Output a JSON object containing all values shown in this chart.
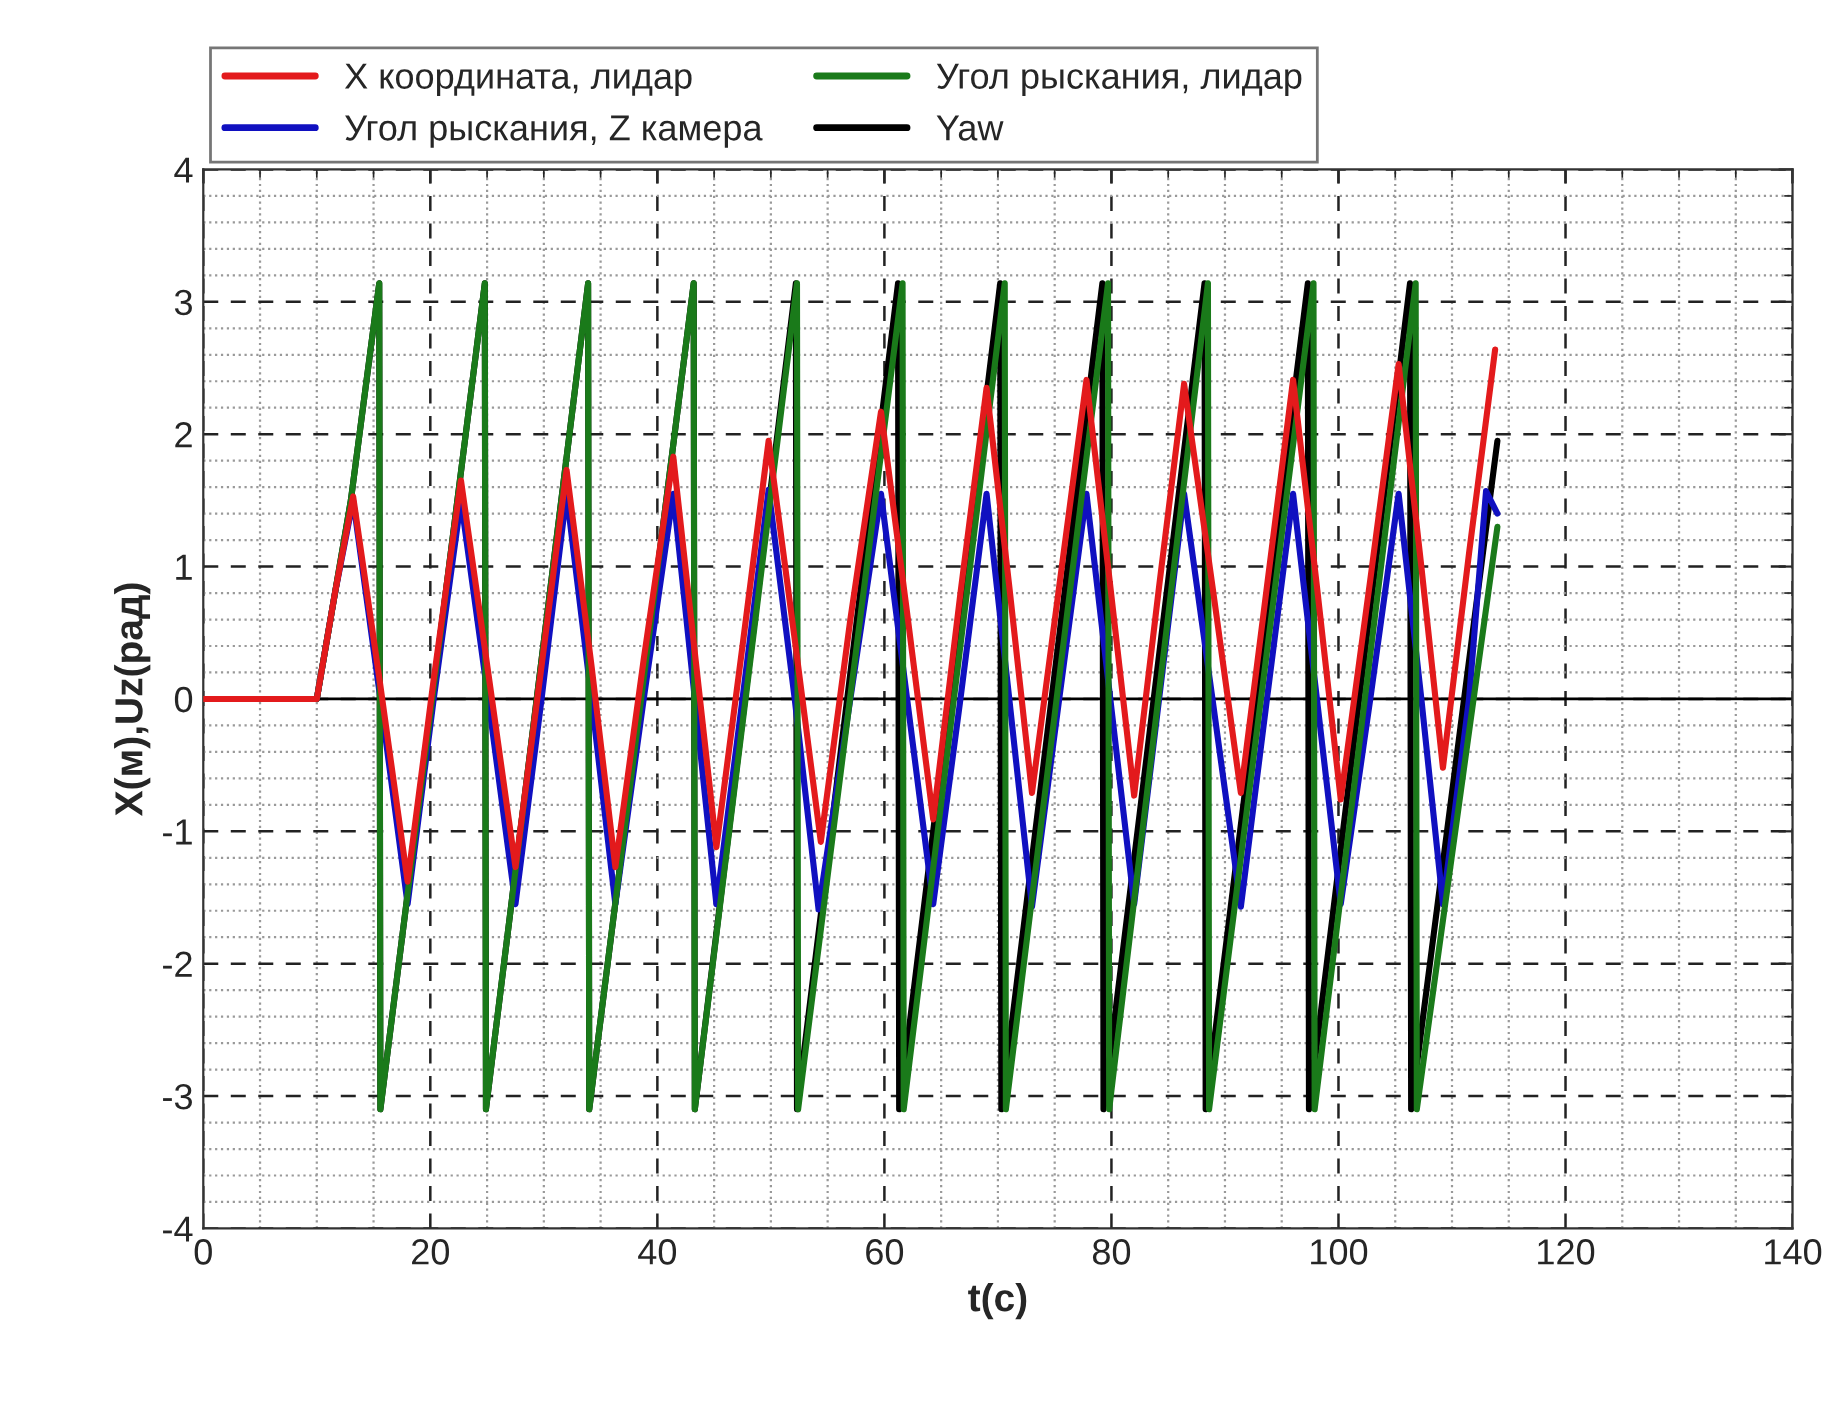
{
  "chart_data": {
    "type": "line",
    "xlabel": "t(c)",
    "ylabel": "X(м),Uz(рад)",
    "xlim": [
      0,
      140
    ],
    "xticks": [
      0,
      20,
      40,
      60,
      80,
      100,
      120,
      140
    ],
    "ylim": [
      -4,
      4
    ],
    "yticks": [
      -4,
      -3,
      -2,
      -1,
      0,
      1,
      2,
      3,
      4
    ],
    "grid": true,
    "legend": "top",
    "marker": "none",
    "line_style": "solid",
    "ref_lines": [
      {
        "axis": "y",
        "value": 0,
        "color": "#000000"
      }
    ],
    "series": [
      {
        "name": "X координата, лидар",
        "color": "#e31a1c",
        "x": [
          0,
          10,
          11.6,
          13.2,
          15.6,
          18,
          20.3,
          22.7,
          25.1,
          27.5,
          29.8,
          32,
          34.2,
          36.3,
          38.8,
          41.4,
          43.3,
          45.2,
          47.5,
          49.8,
          52.1,
          54.4,
          57.0,
          59.7,
          62.0,
          64.3,
          66.7,
          69,
          71,
          73,
          75.4,
          77.8,
          79.9,
          82,
          84.2,
          86.4,
          88.9,
          91.4,
          93.7,
          96,
          98.1,
          100.2,
          102.8,
          105.3,
          107.3,
          109.2,
          111.5,
          113.8
        ],
        "values": [
          0,
          0,
          0.8,
          1.53,
          0.1,
          -1.38,
          0.15,
          1.65,
          0.2,
          -1.27,
          0.25,
          1.73,
          0.25,
          -1.27,
          0.3,
          1.83,
          0.35,
          -1.12,
          0.4,
          1.95,
          0.45,
          -1.08,
          0.6,
          2.17,
          0.65,
          -0.91,
          0.8,
          2.35,
          0.85,
          -0.71,
          0.85,
          2.41,
          0.85,
          -0.73,
          0.85,
          2.38,
          0.85,
          -0.71,
          0.85,
          2.41,
          0.85,
          -0.76,
          0.9,
          2.53,
          1.0,
          -0.52,
          1.1,
          2.64
        ]
      },
      {
        "name": "Угол рыскания, Z камера",
        "color": "#1010c0",
        "x": [
          0,
          10,
          11.6,
          13.2,
          15.6,
          18,
          20.3,
          22.7,
          25.1,
          27.5,
          29.8,
          32,
          34.2,
          36.3,
          38.8,
          41.4,
          43.3,
          45.2,
          47.5,
          49.8,
          52.1,
          54.2,
          57,
          59.7,
          62,
          64.3,
          66.7,
          69,
          71,
          73,
          75.4,
          77.8,
          79.9,
          82,
          84.2,
          86.4,
          88.9,
          91.4,
          93.7,
          96,
          98.1,
          100.2,
          102.8,
          105.3,
          107.3,
          109.2,
          111.5,
          113,
          114
        ],
        "values": [
          0,
          0,
          0.8,
          1.5,
          0,
          -1.55,
          0,
          1.5,
          0,
          -1.55,
          0,
          1.55,
          0,
          -1.55,
          0,
          1.55,
          0,
          -1.55,
          0,
          1.58,
          0,
          -1.59,
          0,
          1.55,
          0,
          -1.55,
          0,
          1.55,
          0,
          -1.57,
          0,
          1.55,
          0,
          -1.55,
          0,
          1.55,
          0,
          -1.57,
          0,
          1.55,
          0,
          -1.55,
          0,
          1.55,
          0,
          -1.55,
          0,
          1.57,
          1.4
        ]
      },
      {
        "name": "Угол рыскания, лидар",
        "color": "#1a7a1a",
        "x": [
          0,
          10,
          13,
          15.5,
          15.6,
          24.8,
          24.9,
          33.9,
          34,
          43.2,
          43.3,
          52.3,
          52.4,
          61.6,
          61.7,
          70.6,
          70.7,
          79.7,
          79.8,
          88.5,
          88.6,
          97.8,
          97.9,
          106.8,
          106.9,
          114
        ],
        "values": [
          0,
          0,
          1.5,
          3.14,
          -3.1,
          3.14,
          -3.1,
          3.14,
          -3.1,
          3.14,
          -3.1,
          3.14,
          -3.1,
          3.14,
          -3.1,
          3.14,
          -3.1,
          3.14,
          -3.1,
          3.14,
          -3.1,
          3.14,
          -3.1,
          3.14,
          -3.1,
          1.3
        ]
      },
      {
        "name": "Yaw",
        "color": "#000000",
        "x": [
          0,
          10,
          13,
          15.5,
          15.6,
          24.8,
          24.9,
          33.9,
          34,
          43.2,
          43.3,
          52.2,
          52.3,
          61.2,
          61.3,
          70.2,
          70.3,
          79.2,
          79.3,
          88.2,
          88.3,
          97.3,
          97.4,
          106.3,
          106.4,
          114
        ],
        "values": [
          0,
          0,
          1.5,
          3.14,
          -3.1,
          3.14,
          -3.1,
          3.14,
          -3.1,
          3.14,
          -3.1,
          3.14,
          -3.1,
          3.14,
          -3.1,
          3.14,
          -3.1,
          3.14,
          -3.1,
          3.14,
          -3.1,
          3.14,
          -3.1,
          3.14,
          -3.1,
          1.95
        ]
      }
    ]
  }
}
